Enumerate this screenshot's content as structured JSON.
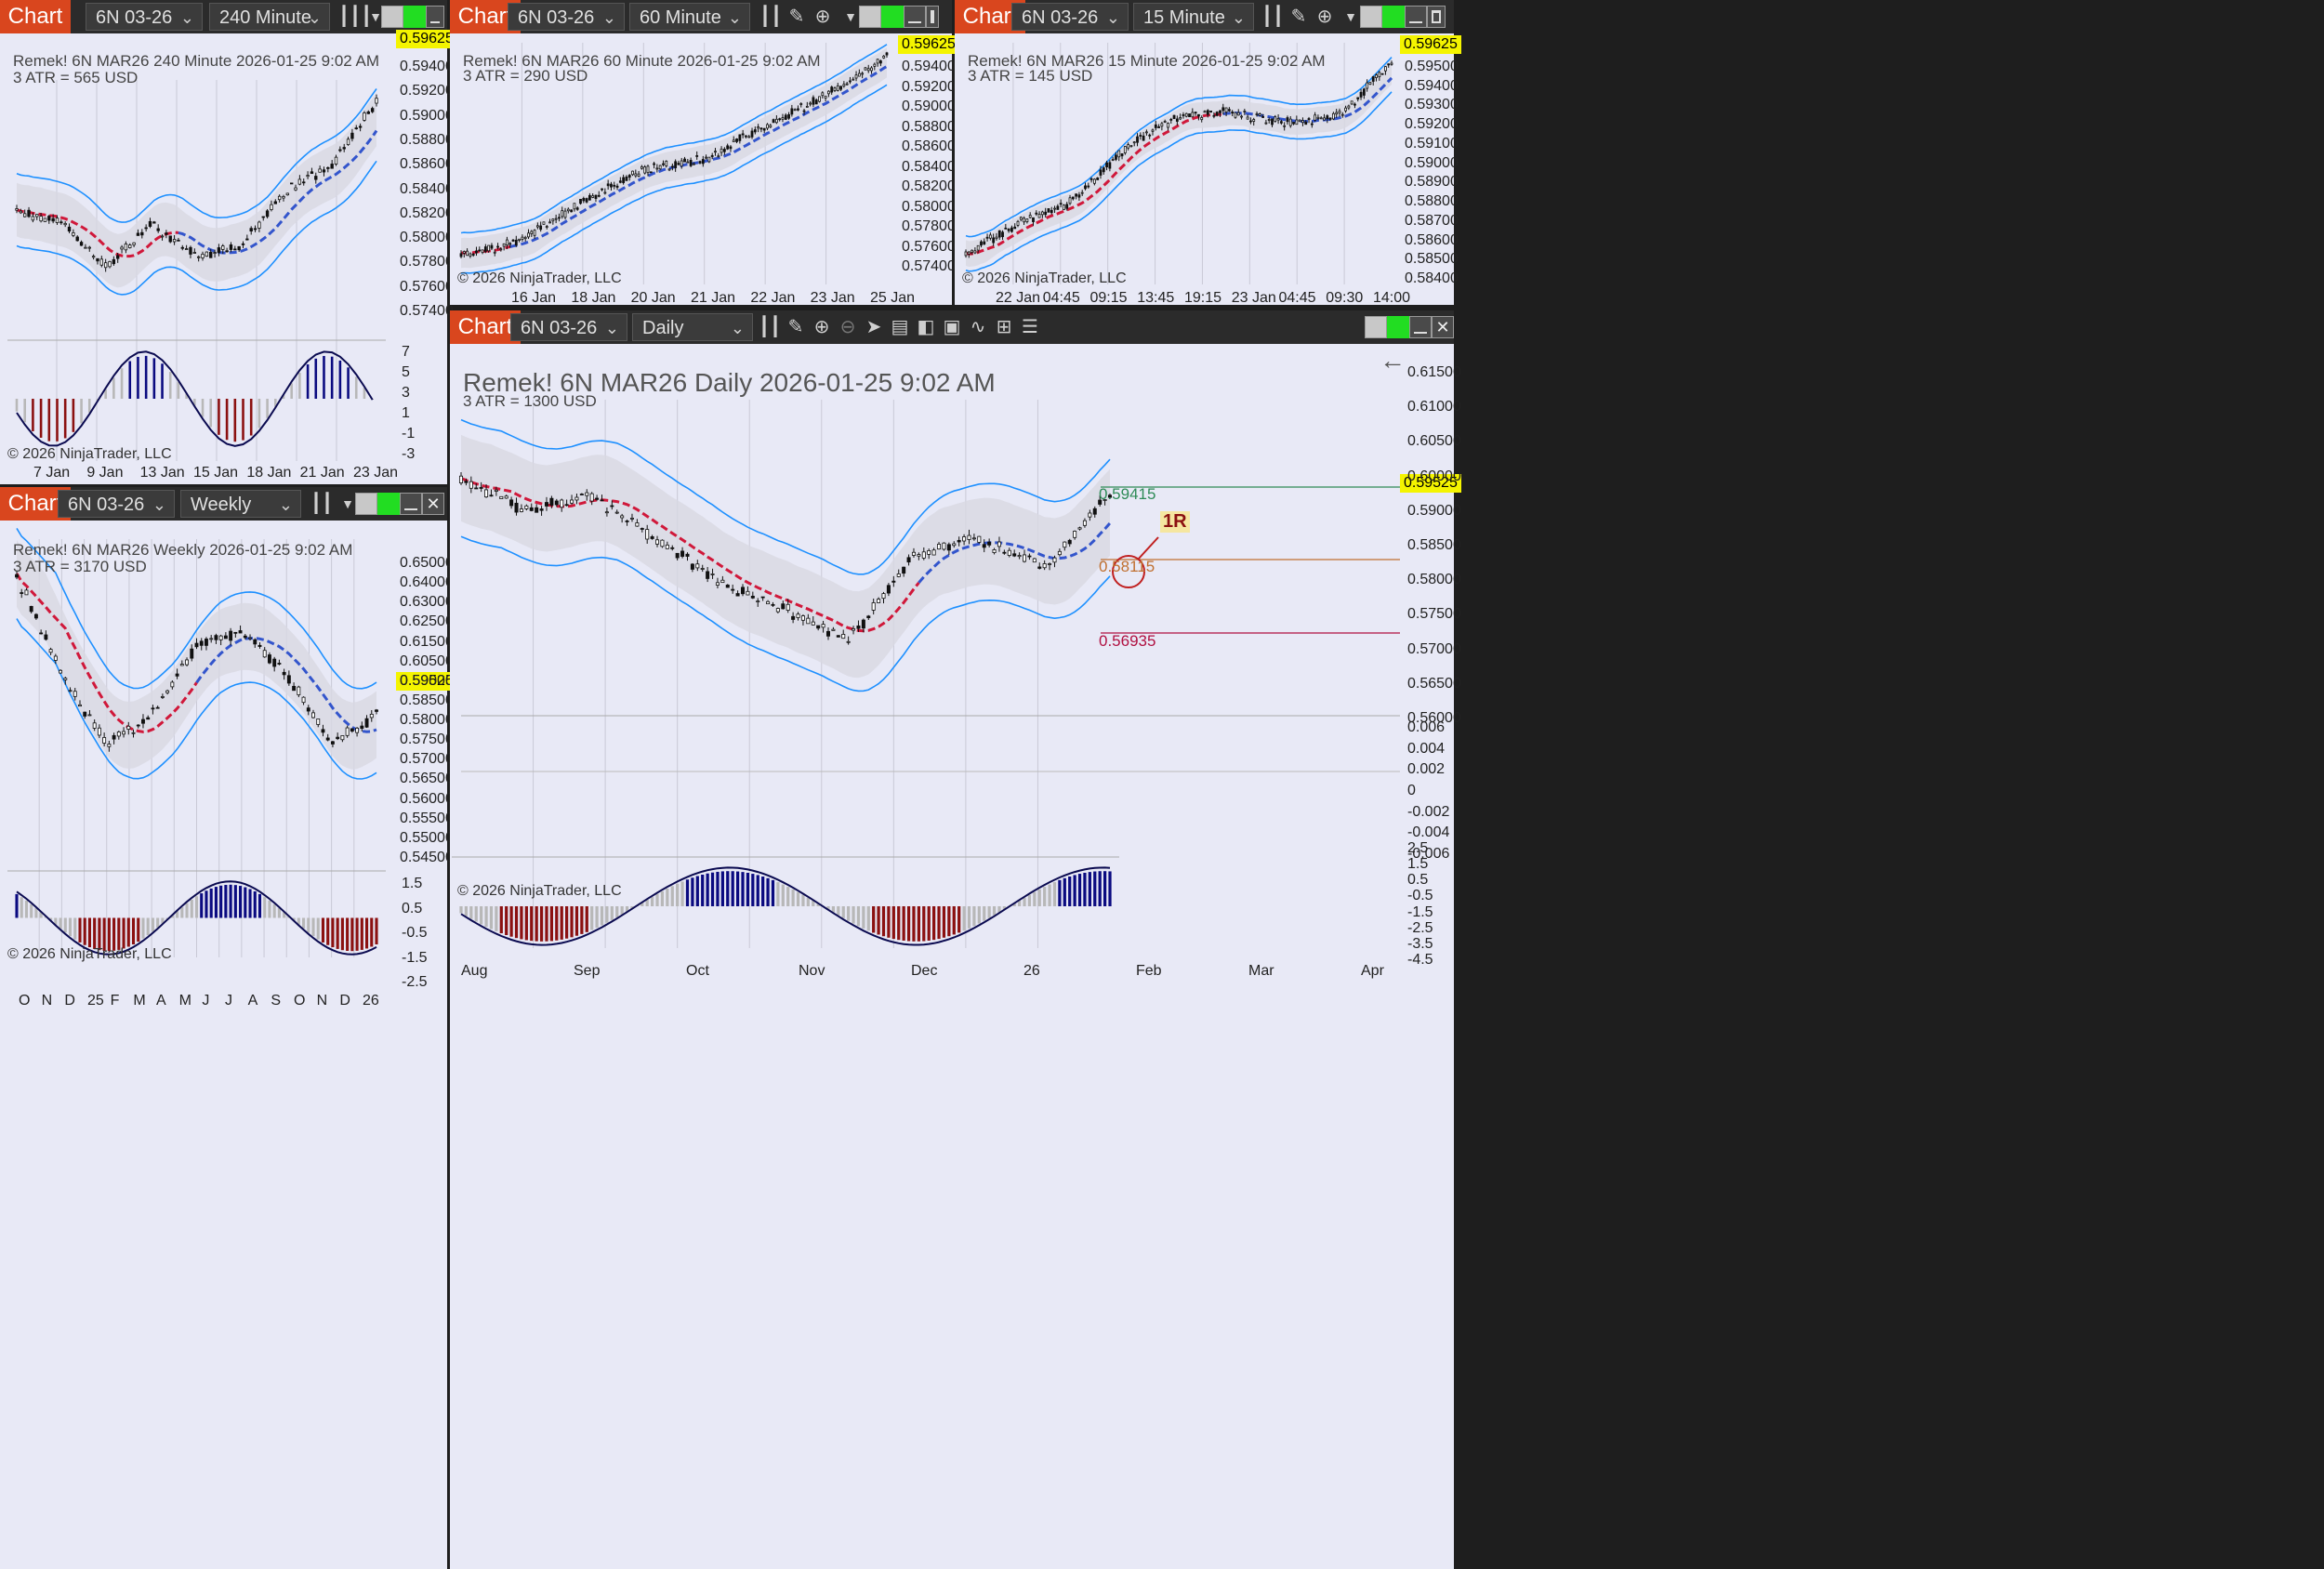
{
  "common": {
    "tab_label": "Chart",
    "instrument": "6N 03-26",
    "copyright": "© 2026 NinjaTrader, LLC"
  },
  "windows": {
    "m240": {
      "interval": "240 Minute",
      "title": "Remek!  6N MAR26  240 Minute  2026-01-25 9:02 AM",
      "atr": "3 ATR = 565 USD",
      "price_tag": "0.59625",
      "y_labels": [
        "0.59400",
        "0.59200",
        "0.59000",
        "0.58800",
        "0.58600",
        "0.58400",
        "0.58200",
        "0.58000",
        "0.57800",
        "0.57600",
        "0.57400"
      ],
      "osc_labels": [
        "7",
        "5",
        "3",
        "1",
        "-1",
        "-3"
      ],
      "x_labels": [
        "7 Jan",
        "9 Jan",
        "13 Jan",
        "15 Jan",
        "18 Jan",
        "21 Jan",
        "23 Jan"
      ]
    },
    "m60": {
      "interval": "60 Minute",
      "title": "Remek!  6N MAR26  60 Minute  2026-01-25 9:02 AM",
      "atr": "3 ATR = 290 USD",
      "price_tag": "0.59625",
      "y_labels": [
        "0.59400",
        "0.59200",
        "0.59000",
        "0.58800",
        "0.58600",
        "0.58400",
        "0.58200",
        "0.58000",
        "0.57800",
        "0.57600",
        "0.57400"
      ],
      "x_labels": [
        "16 Jan",
        "18 Jan",
        "20 Jan",
        "21 Jan",
        "22 Jan",
        "23 Jan",
        "25 Jan"
      ]
    },
    "m15": {
      "interval": "15 Minute",
      "title": "Remek!  6N MAR26  15 Minute  2026-01-25 9:02 AM",
      "atr": "3 ATR = 145 USD",
      "price_tag": "0.59625",
      "y_labels": [
        "0.59500",
        "0.59400",
        "0.59300",
        "0.59200",
        "0.59100",
        "0.59000",
        "0.58900",
        "0.58800",
        "0.58700",
        "0.58600",
        "0.58500",
        "0.58400"
      ],
      "x_labels": [
        "22 Jan",
        "04:45",
        "09:15",
        "13:45",
        "19:15",
        "23 Jan",
        "04:45",
        "09:30",
        "14:00"
      ]
    },
    "weekly": {
      "interval": "Weekly",
      "title": "Remek!  6N MAR26  Weekly  2026-01-25 9:02 AM",
      "atr": "3 ATR = 3170 USD",
      "price_tag": "0.59525",
      "y_labels": [
        "0.65000",
        "0.64000",
        "0.63000",
        "0.62500",
        "0.61500",
        "0.60500",
        "0.59000",
        "0.58500",
        "0.58000",
        "0.57500",
        "0.57000",
        "0.56500",
        "0.56000",
        "0.55500",
        "0.55000",
        "0.54500"
      ],
      "osc_labels": [
        "1.5",
        "0.5",
        "-0.5",
        "-1.5",
        "-2.5"
      ],
      "x_labels": [
        "O",
        "N",
        "D",
        "25",
        "F",
        "M",
        "A",
        "M",
        "J",
        "J",
        "A",
        "S",
        "O",
        "N",
        "D",
        "26"
      ]
    },
    "daily": {
      "interval": "Daily",
      "title": "Remek!  6N MAR26  Daily  2026-01-25 9:02 AM",
      "atr": "3 ATR = 1300 USD",
      "price_tag": "0.59525",
      "level_high": "0.59415",
      "level_entry": "0.58115",
      "level_stop": "0.56935",
      "target_label": "1R",
      "y_labels": [
        "0.61500",
        "0.61000",
        "0.60500",
        "0.60000",
        "0.59000",
        "0.58500",
        "0.58000",
        "0.57500",
        "0.57000",
        "0.56500",
        "0.56000"
      ],
      "osc1_labels": [
        "0.006",
        "0.004",
        "0.002",
        "0",
        "-0.002",
        "-0.004",
        "-0.006"
      ],
      "osc2_labels": [
        "2.5",
        "1.5",
        "0.5",
        "-0.5",
        "-1.5",
        "-2.5",
        "-3.5",
        "-4.5"
      ],
      "x_labels": [
        "Aug",
        "Sep",
        "Oct",
        "Nov",
        "Dec",
        "26",
        "Feb",
        "Mar",
        "Apr"
      ]
    }
  },
  "colors": {
    "chart_tab": "#d9461e",
    "plot_bg": "#e8e9f6",
    "bull_candle": "#ffffff",
    "bear_candle": "#111111",
    "band": "#1e90ff",
    "ma_bear": "#d0183a",
    "ma_bull": "#3355cc",
    "price_tag": "#f4f400",
    "hist_bear": "#8b1010",
    "hist_bull": "#0a0a80",
    "hist_neutral": "#b8b8b8"
  }
}
